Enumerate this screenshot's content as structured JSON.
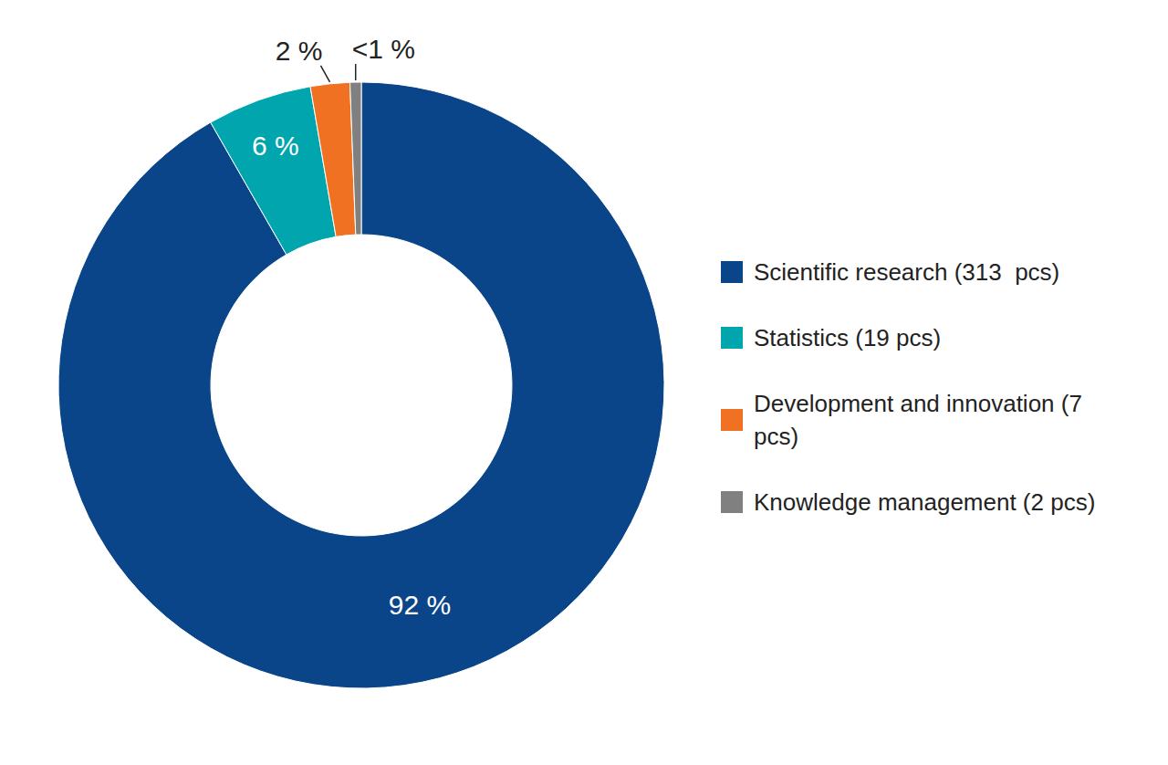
{
  "chart_data": {
    "type": "donut",
    "categories": [
      "Scientific research (313  pcs)",
      "Statistics (19 pcs)",
      "Development and innovation (7 pcs)",
      "Knowledge management (2 pcs)"
    ],
    "values": [
      91.8,
      5.6,
      2.1,
      0.6
    ],
    "value_labels": [
      "92 %",
      "6 %",
      "2 %",
      "<1 %"
    ],
    "colors": [
      "#0b4589",
      "#00a5ad",
      "#f07122",
      "#808080"
    ],
    "data_labels": true,
    "legend": "right"
  }
}
